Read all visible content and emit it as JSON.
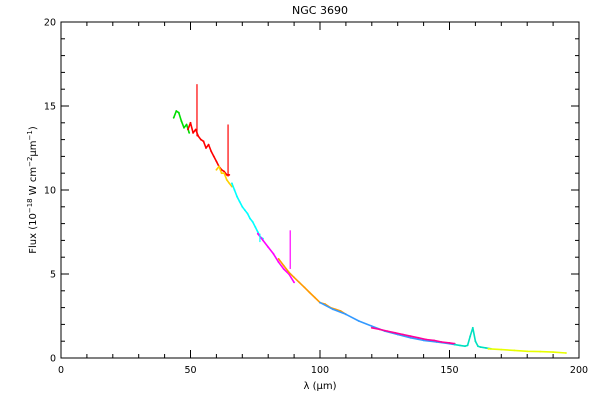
{
  "chart_data": {
    "type": "line",
    "title": "NGC 3690",
    "xlabel": {
      "base": "λ (",
      "unit": "μm",
      "close": ")"
    },
    "ylabel": {
      "p1": "Flux (10",
      "exp1": "−18",
      "p2": " W cm",
      "exp2": "−2",
      "p3": "μm",
      "exp3": "−1",
      "p4": ")"
    },
    "xlim": [
      0,
      200
    ],
    "ylim": [
      0,
      20
    ],
    "x_ticks": [
      0,
      50,
      100,
      150,
      200
    ],
    "y_ticks": [
      0,
      5,
      10,
      15,
      20
    ],
    "x_tick_labels": [
      "0",
      "50",
      "100",
      "150",
      "200"
    ],
    "y_tick_labels": [
      "0",
      "5",
      "10",
      "15",
      "20"
    ],
    "grid": false,
    "legend": "none",
    "series": [
      {
        "color": "#00dd00",
        "x": [
          43.5,
          44.5,
          45.5,
          46.5,
          47.5,
          48.5,
          49.5
        ],
        "y": [
          14.3,
          14.7,
          14.6,
          14.1,
          13.7,
          13.9,
          13.4
        ]
      },
      {
        "color": "#ff0000",
        "x": [
          49,
          50,
          51,
          52,
          53,
          54,
          55,
          56,
          57,
          58,
          59,
          60,
          61,
          62,
          63,
          64,
          65
        ],
        "y": [
          13.6,
          14.0,
          13.4,
          13.6,
          13.2,
          13.0,
          12.9,
          12.5,
          12.7,
          12.3,
          12.0,
          11.7,
          11.4,
          11.2,
          11.1,
          10.9,
          10.9
        ]
      },
      {
        "color": "#ffd000",
        "x": [
          60,
          61,
          62,
          63,
          64,
          65,
          66
        ],
        "y": [
          11.2,
          11.4,
          11.0,
          11.0,
          10.6,
          10.4,
          10.2
        ]
      },
      {
        "color": "#00ffff",
        "x": [
          66,
          67,
          68,
          69,
          70,
          71,
          72,
          73,
          74,
          75,
          76,
          77,
          78
        ],
        "y": [
          10.4,
          10.0,
          9.6,
          9.3,
          9.0,
          8.8,
          8.6,
          8.3,
          8.1,
          7.8,
          7.5,
          7.2,
          7.1
        ]
      },
      {
        "color": "#ff00ff",
        "x": [
          76,
          78,
          80,
          82,
          84,
          86,
          88,
          90
        ],
        "y": [
          7.4,
          7.0,
          6.6,
          6.2,
          5.7,
          5.3,
          5.0,
          4.5
        ]
      },
      {
        "color": "#ff9900",
        "x": [
          84,
          86,
          88,
          90,
          92,
          94,
          96,
          98,
          100,
          102,
          104,
          106,
          108,
          110
        ],
        "y": [
          5.9,
          5.5,
          5.1,
          4.8,
          4.5,
          4.2,
          3.9,
          3.6,
          3.3,
          3.2,
          3.0,
          2.9,
          2.8,
          2.6
        ]
      },
      {
        "color": "#3399ff",
        "x": [
          100,
          105,
          110,
          115,
          120,
          125,
          130,
          135,
          140,
          145,
          150,
          152
        ],
        "y": [
          3.3,
          2.9,
          2.6,
          2.2,
          1.9,
          1.6,
          1.4,
          1.2,
          1.05,
          0.95,
          0.85,
          0.8
        ]
      },
      {
        "color": "#ff0099",
        "x": [
          120,
          123,
          126,
          129,
          132,
          135,
          138,
          141,
          144,
          147,
          150,
          152
        ],
        "y": [
          1.8,
          1.7,
          1.6,
          1.5,
          1.4,
          1.3,
          1.2,
          1.1,
          1.05,
          0.95,
          0.9,
          0.85
        ]
      },
      {
        "color": "#00e0c0",
        "x": [
          152,
          154,
          156,
          157,
          158,
          159,
          160,
          161,
          162,
          164,
          166
        ],
        "y": [
          0.8,
          0.75,
          0.7,
          0.75,
          1.3,
          1.8,
          1.0,
          0.7,
          0.65,
          0.6,
          0.55
        ]
      },
      {
        "color": "#e8ff00",
        "x": [
          165,
          170,
          175,
          180,
          185,
          190,
          195
        ],
        "y": [
          0.55,
          0.5,
          0.45,
          0.4,
          0.38,
          0.35,
          0.3
        ]
      }
    ],
    "spikes": [
      {
        "color": "#ff0000",
        "x": 52.5,
        "y_base": 13.2,
        "y_top": 16.3
      },
      {
        "color": "#ff0000",
        "x": 64.5,
        "y_base": 10.8,
        "y_top": 13.9
      },
      {
        "color": "#ff00ff",
        "x": 88.5,
        "y_base": 5.3,
        "y_top": 7.6
      },
      {
        "color": "#00ffff",
        "x": 76.8,
        "y_base": 6.9,
        "y_top": 7.4
      }
    ]
  }
}
